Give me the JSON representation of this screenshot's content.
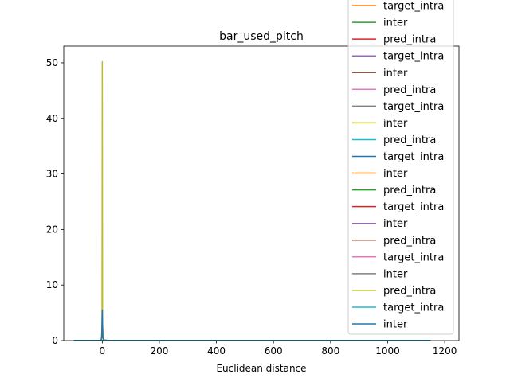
{
  "chart_data": {
    "type": "line",
    "title": "bar_used_pitch",
    "xlabel": "Euclidean distance",
    "ylabel": "",
    "xlim": [
      -135,
      1250
    ],
    "ylim": [
      0,
      53
    ],
    "xticks": [
      0,
      200,
      400,
      600,
      800,
      1000,
      1200
    ],
    "yticks": [
      0,
      10,
      20,
      30,
      40,
      50
    ],
    "grid": false,
    "legend_position": "right (overflowing top)",
    "series": [
      {
        "name": "target_intra",
        "color": "#ff7f0e",
        "x": [
          -100,
          -5,
          -2,
          0,
          2,
          5,
          40,
          1150
        ],
        "y": [
          0,
          0,
          0.4,
          2.2,
          0.4,
          0,
          0,
          0
        ]
      },
      {
        "name": "inter",
        "color": "#2ca02c",
        "x": [
          -100,
          1150
        ],
        "y": [
          0,
          0
        ]
      },
      {
        "name": "pred_intra",
        "color": "#d62728",
        "x": [
          -100,
          1150
        ],
        "y": [
          0,
          0
        ]
      },
      {
        "name": "target_intra",
        "color": "#9467bd",
        "x": [
          -100,
          1150
        ],
        "y": [
          0,
          0
        ]
      },
      {
        "name": "inter",
        "color": "#8c564b",
        "x": [
          -100,
          1150
        ],
        "y": [
          0,
          0
        ]
      },
      {
        "name": "pred_intra",
        "color": "#e377c2",
        "x": [
          -100,
          1150
        ],
        "y": [
          0,
          0
        ]
      },
      {
        "name": "target_intra",
        "color": "#7f7f7f",
        "x": [
          -100,
          1150
        ],
        "y": [
          0,
          0
        ]
      },
      {
        "name": "inter",
        "color": "#bcbd22",
        "x": [
          -100,
          -3,
          -1,
          0,
          1,
          3,
          1150
        ],
        "y": [
          0,
          0,
          3,
          50.2,
          3,
          0,
          0
        ]
      },
      {
        "name": "pred_intra",
        "color": "#17becf",
        "x": [
          -100,
          1150
        ],
        "y": [
          0,
          0
        ]
      },
      {
        "name": "target_intra",
        "color": "#1f77b4",
        "x": [
          -100,
          -5,
          -2,
          0,
          2,
          5,
          30,
          1150
        ],
        "y": [
          0,
          0,
          0.6,
          5.5,
          0.6,
          0.1,
          0,
          0
        ]
      },
      {
        "name": "inter",
        "color": "#ff7f0e",
        "x": [
          -100,
          1150
        ],
        "y": [
          0,
          0
        ]
      },
      {
        "name": "pred_intra",
        "color": "#2ca02c",
        "x": [
          -100,
          1150
        ],
        "y": [
          0,
          0
        ]
      },
      {
        "name": "target_intra",
        "color": "#d62728",
        "x": [
          -100,
          1150
        ],
        "y": [
          0,
          0
        ]
      },
      {
        "name": "inter",
        "color": "#9467bd",
        "x": [
          -100,
          1150
        ],
        "y": [
          0,
          0
        ]
      },
      {
        "name": "pred_intra",
        "color": "#8c564b",
        "x": [
          -100,
          1150
        ],
        "y": [
          0,
          0
        ]
      },
      {
        "name": "target_intra",
        "color": "#e377c2",
        "x": [
          -100,
          1150
        ],
        "y": [
          0,
          0
        ]
      },
      {
        "name": "inter",
        "color": "#7f7f7f",
        "x": [
          -100,
          1150
        ],
        "y": [
          0,
          0
        ]
      },
      {
        "name": "pred_intra",
        "color": "#bcbd22",
        "x": [
          -100,
          1150
        ],
        "y": [
          0,
          0
        ]
      },
      {
        "name": "target_intra",
        "color": "#17becf",
        "x": [
          -100,
          1150
        ],
        "y": [
          0,
          0
        ]
      },
      {
        "name": "inter",
        "color": "#1f77b4",
        "x": [
          -100,
          1150
        ],
        "y": [
          0,
          0
        ]
      }
    ]
  }
}
